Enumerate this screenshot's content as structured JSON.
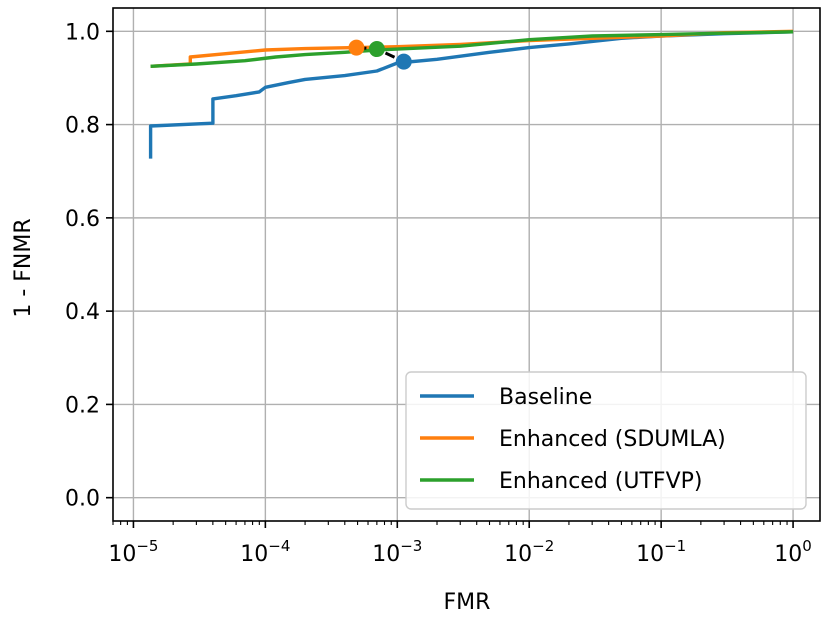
{
  "chart_data": {
    "type": "line",
    "title": "",
    "xlabel": "FMR",
    "ylabel": "1 - FNMR",
    "xscale": "log",
    "xlim": [
      7e-06,
      1.6
    ],
    "ylim": [
      -0.05,
      1.05
    ],
    "grid": true,
    "legend_position": "lower-right",
    "x_ticks": [
      {
        "value": 1e-05,
        "base": "10",
        "exp": "−5"
      },
      {
        "value": 0.0001,
        "base": "10",
        "exp": "−4"
      },
      {
        "value": 0.001,
        "base": "10",
        "exp": "−3"
      },
      {
        "value": 0.01,
        "base": "10",
        "exp": "−2"
      },
      {
        "value": 0.1,
        "base": "10",
        "exp": "−1"
      },
      {
        "value": 1,
        "base": "10",
        "exp": "0"
      }
    ],
    "y_ticks": [
      {
        "value": 0.0,
        "label": "0.0"
      },
      {
        "value": 0.2,
        "label": "0.2"
      },
      {
        "value": 0.4,
        "label": "0.4"
      },
      {
        "value": 0.6,
        "label": "0.6"
      },
      {
        "value": 0.8,
        "label": "0.8"
      },
      {
        "value": 1.0,
        "label": "1.0"
      }
    ],
    "series": [
      {
        "name": "Baseline",
        "color": "#1f77b4",
        "points": [
          [
            1.35e-05,
            0.727
          ],
          [
            1.35e-05,
            0.797
          ],
          [
            4e-05,
            0.803
          ],
          [
            4e-05,
            0.855
          ],
          [
            6e-05,
            0.862
          ],
          [
            9e-05,
            0.87
          ],
          [
            0.0001,
            0.88
          ],
          [
            0.00015,
            0.89
          ],
          [
            0.0002,
            0.897
          ],
          [
            0.0004,
            0.905
          ],
          [
            0.0007,
            0.915
          ],
          [
            0.001,
            0.932
          ],
          [
            0.002,
            0.94
          ],
          [
            0.005,
            0.955
          ],
          [
            0.01,
            0.965
          ],
          [
            0.02,
            0.973
          ],
          [
            0.05,
            0.985
          ],
          [
            0.1,
            0.99
          ],
          [
            0.3,
            0.995
          ],
          [
            1,
            0.999
          ]
        ],
        "marker": {
          "x": 0.00112,
          "y": 0.935
        }
      },
      {
        "name": "Enhanced (SDUMLA)",
        "color": "#ff7f0e",
        "points": [
          [
            1.35e-05,
            0.925
          ],
          [
            2.7e-05,
            0.93
          ],
          [
            2.7e-05,
            0.945
          ],
          [
            5e-05,
            0.952
          ],
          [
            0.0001,
            0.96
          ],
          [
            0.0002,
            0.963
          ],
          [
            0.00048,
            0.965
          ],
          [
            0.001,
            0.967
          ],
          [
            0.003,
            0.972
          ],
          [
            0.01,
            0.98
          ],
          [
            0.03,
            0.985
          ],
          [
            0.1,
            0.99
          ],
          [
            0.3,
            0.997
          ],
          [
            1,
            1.0
          ]
        ],
        "marker": {
          "x": 0.00049,
          "y": 0.965
        }
      },
      {
        "name": "Enhanced (UTFVP)",
        "color": "#2ca02c",
        "points": [
          [
            1.35e-05,
            0.925
          ],
          [
            3e-05,
            0.93
          ],
          [
            7e-05,
            0.937
          ],
          [
            0.00012,
            0.945
          ],
          [
            0.0002,
            0.95
          ],
          [
            0.0004,
            0.955
          ],
          [
            0.0007,
            0.96
          ],
          [
            0.0012,
            0.963
          ],
          [
            0.003,
            0.968
          ],
          [
            0.01,
            0.982
          ],
          [
            0.03,
            0.99
          ],
          [
            0.1,
            0.993
          ],
          [
            0.3,
            0.996
          ],
          [
            1,
            0.999
          ]
        ],
        "marker": {
          "x": 0.0007,
          "y": 0.962
        }
      }
    ],
    "connector": {
      "color": "#000000",
      "style": "dashed",
      "points": [
        [
          0.00049,
          0.965
        ],
        [
          0.0007,
          0.962
        ],
        [
          0.00112,
          0.935
        ]
      ]
    }
  }
}
